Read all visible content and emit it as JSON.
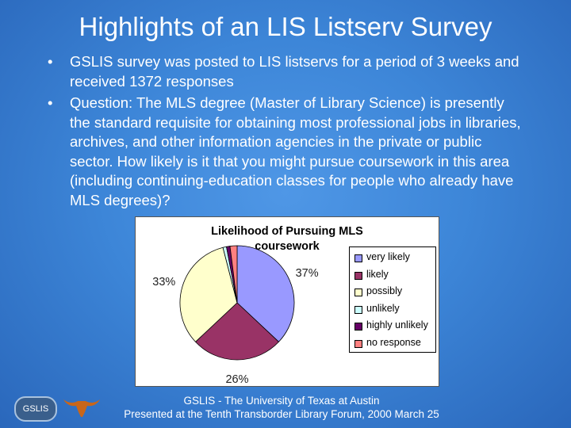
{
  "slide": {
    "title": "Highlights of an LIS Listserv Survey",
    "bullet_symbol": "•",
    "bullets": [
      "GSLIS survey was posted to LIS listservs for a period of 3 weeks and received 1372 responses",
      "Question: The MLS degree (Master of Library Science) is presently the standard requisite for obtaining most professional jobs in libraries, archives, and other information agencies in the private or public sector. How likely is it that you might pursue coursework in this area (including continuing-education classes for people who already have MLS degrees)?"
    ],
    "footer_logo": "GSLIS",
    "footer_line1": "GSLIS - The University of Texas at Austin",
    "footer_line2": "Presented at the Tenth Transborder Library Forum, 2000 March 25"
  },
  "chart_data": {
    "type": "pie",
    "title_line1": "Likelihood of Pursuing MLS",
    "title_line2": "coursework",
    "categories": [
      "very likely",
      "likely",
      "possibly",
      "unlikely",
      "highly unlikely",
      "no response"
    ],
    "values": [
      37,
      26,
      33,
      1,
      1,
      2
    ],
    "labels": [
      "37%",
      "26%",
      "33%",
      "",
      "",
      ""
    ],
    "colors": [
      "#9999ff",
      "#993366",
      "#ffffcc",
      "#ccffff",
      "#660066",
      "#ff8080"
    ],
    "legend_position": "right"
  }
}
